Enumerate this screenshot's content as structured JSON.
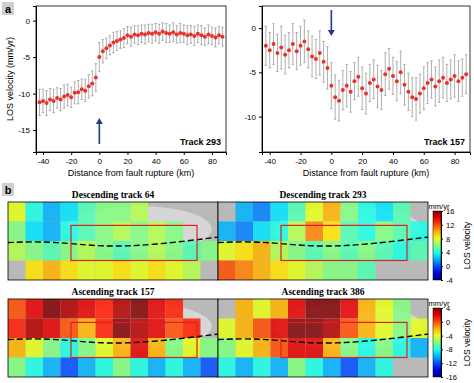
{
  "panel_labels": [
    "a",
    "b"
  ],
  "chart_data": [
    {
      "type": "scatter",
      "title": "Track 293",
      "color": "#e8322a",
      "marker": "circle",
      "x_label": "Distance from fault rupture (km)",
      "y_label": "LOS velocity (mm/yr)",
      "xlim": [
        -45,
        90
      ],
      "xticks": [
        -40,
        -20,
        0,
        20,
        40,
        60,
        80
      ],
      "ylim": [
        -18,
        2
      ],
      "yticks": [
        -15,
        -10,
        -5,
        0
      ],
      "fault_rupture": 0,
      "x": [
        -42.5,
        -40,
        -37.5,
        -35,
        -32.5,
        -30,
        -27.5,
        -25,
        -22.5,
        -20,
        -17.5,
        -15,
        -12.5,
        -10,
        -7.5,
        -5,
        -2.5,
        0,
        2.5,
        5,
        7.5,
        10,
        12.5,
        15,
        17.5,
        20,
        22.5,
        25,
        27.5,
        30,
        32.5,
        35,
        37.5,
        40,
        42.5,
        45,
        47.5,
        50,
        52.5,
        55,
        57.5,
        60,
        62.5,
        65,
        67.5,
        70,
        72.5,
        75,
        77.5,
        80,
        82.5,
        85,
        87.5
      ],
      "values": [
        -11.2,
        -11.0,
        -11.3,
        -10.8,
        -11.0,
        -10.6,
        -10.8,
        -10.4,
        -10.2,
        -10.5,
        -9.9,
        -9.8,
        -9.4,
        -9.6,
        -9.0,
        -8.6,
        -7.8,
        -5.0,
        -4.2,
        -3.8,
        -3.4,
        -3.0,
        -2.8,
        -2.6,
        -2.4,
        -2.0,
        -2.2,
        -1.9,
        -2.0,
        -1.8,
        -1.9,
        -1.7,
        -1.8,
        -1.6,
        -1.8,
        -1.5,
        -1.7,
        -1.8,
        -1.6,
        -1.9,
        -1.7,
        -1.8,
        -2.0,
        -1.9,
        -2.1,
        -1.8,
        -2.0,
        -2.2,
        -1.9,
        -2.1,
        -2.3,
        -2.0,
        -2.2
      ],
      "errors": [
        1.8,
        1.6,
        1.7,
        1.5,
        1.6,
        1.4,
        1.5,
        1.6,
        1.5,
        1.4,
        1.5,
        1.6,
        1.4,
        1.5,
        1.6,
        1.7,
        1.9,
        2.0,
        1.6,
        1.4,
        1.3,
        1.4,
        1.3,
        1.2,
        1.3,
        1.2,
        1.3,
        1.2,
        1.3,
        1.2,
        1.3,
        1.2,
        1.3,
        1.2,
        1.3,
        1.2,
        1.3,
        1.2,
        1.3,
        1.2,
        1.3,
        1.2,
        1.3,
        1.2,
        1.3,
        1.2,
        1.3,
        1.2,
        1.3,
        1.2,
        1.3,
        1.2,
        1.3
      ]
    },
    {
      "type": "scatter",
      "title": "Track 157",
      "color": "#e8322a",
      "marker": "circle",
      "x_label": "Distance from fault rupture (km)",
      "xlim": [
        -45,
        90
      ],
      "xticks": [
        -40,
        -20,
        0,
        20,
        40,
        60,
        80
      ],
      "ylim": [
        -14,
        2.5
      ],
      "yticks": [
        -10,
        -5,
        0
      ],
      "fault_rupture": 0,
      "x": [
        -42.5,
        -40,
        -37.5,
        -35,
        -32.5,
        -30,
        -27.5,
        -25,
        -22.5,
        -20,
        -17.5,
        -15,
        -12.5,
        -10,
        -7.5,
        -5,
        -2.5,
        0,
        2.5,
        5,
        7.5,
        10,
        12.5,
        15,
        17.5,
        20,
        22.5,
        25,
        27.5,
        30,
        32.5,
        35,
        37.5,
        40,
        42.5,
        45,
        47.5,
        50,
        52.5,
        55,
        57.5,
        60,
        62.5,
        65,
        67.5,
        70,
        72.5,
        75,
        77.5,
        80,
        82.5,
        85,
        87.5
      ],
      "values": [
        -2.0,
        -2.5,
        -1.8,
        -2.8,
        -2.2,
        -3.0,
        -2.5,
        -1.8,
        -2.6,
        -2.0,
        -1.5,
        -2.4,
        -3.2,
        -3.5,
        -2.8,
        -3.8,
        -4.5,
        -6.5,
        -7.8,
        -8.2,
        -7.0,
        -6.5,
        -7.2,
        -6.0,
        -5.5,
        -6.8,
        -7.4,
        -6.2,
        -5.8,
        -6.6,
        -7.0,
        -5.2,
        -4.6,
        -5.4,
        -6.0,
        -5.0,
        -6.4,
        -7.2,
        -7.8,
        -8.0,
        -7.4,
        -6.8,
        -6.2,
        -5.8,
        -6.6,
        -6.0,
        -5.6,
        -6.2,
        -5.8,
        -5.4,
        -6.0,
        -5.6,
        -5.2
      ],
      "errors": [
        2.2,
        2.0,
        2.3,
        2.1,
        2.4,
        2.2,
        2.0,
        2.3,
        2.1,
        2.2,
        2.4,
        2.1,
        2.3,
        2.2,
        2.5,
        2.3,
        2.4,
        2.6,
        2.5,
        2.3,
        2.2,
        2.4,
        2.3,
        2.1,
        2.2,
        2.4,
        2.3,
        2.1,
        2.2,
        2.4,
        2.2,
        2.4,
        2.3,
        2.1,
        2.2,
        2.4,
        2.3,
        2.1,
        2.2,
        2.4,
        2.2,
        2.4,
        2.3,
        2.1,
        2.2,
        2.4,
        2.3,
        2.1,
        2.2,
        2.4,
        2.3,
        2.1,
        2.2
      ]
    },
    {
      "type": "heatmap",
      "title": "Descending track 64",
      "tick_labels": false,
      "zlim": [
        -4,
        16
      ],
      "cells": [
        [
          8,
          4,
          2,
          3,
          5,
          6,
          6,
          7,
          null,
          null,
          null,
          null
        ],
        [
          6,
          3,
          2,
          4,
          5,
          6,
          7,
          6,
          7,
          6,
          null,
          null
        ],
        [
          7,
          6,
          5,
          6,
          7,
          6,
          5,
          6,
          7,
          6,
          5,
          6
        ],
        [
          null,
          9,
          10,
          9,
          8,
          8,
          9,
          8,
          9,
          8,
          7,
          null
        ]
      ]
    },
    {
      "type": "heatmap",
      "title": "Descending track 293",
      "tick_labels": false,
      "zlim": [
        -4,
        16
      ],
      "cells": [
        [
          null,
          2,
          1,
          3,
          5,
          8,
          10,
          6,
          4,
          3,
          5,
          null
        ],
        [
          2,
          1,
          3,
          4,
          7,
          11,
          9,
          5,
          4,
          6,
          5,
          4
        ],
        [
          8,
          9,
          10,
          7,
          6,
          5,
          6,
          5,
          6,
          5,
          4,
          5
        ],
        [
          12,
          11,
          10,
          9,
          8,
          7,
          6,
          6,
          5,
          null,
          null,
          null
        ]
      ],
      "colorbar": {
        "label": "mm/yr",
        "title": "LOS velocity",
        "ticks": [
          16,
          12,
          8,
          4,
          0,
          -4
        ]
      }
    },
    {
      "type": "heatmap",
      "title": "Ascending track 157",
      "tick_labels": false,
      "zlim": [
        -16,
        4
      ],
      "cells": [
        [
          0,
          2,
          4,
          3,
          2,
          1,
          3,
          4,
          2,
          1,
          null,
          null
        ],
        [
          1,
          3,
          2,
          0,
          -2,
          1,
          4,
          3,
          2,
          0,
          1,
          null
        ],
        [
          -2,
          -4,
          -6,
          -8,
          -6,
          -4,
          -2,
          2,
          -2,
          -6,
          -4,
          -6
        ],
        [
          -6,
          -8,
          -10,
          -12,
          -10,
          -8,
          -6,
          -8,
          -10,
          -8,
          -10,
          -12
        ]
      ]
    },
    {
      "type": "heatmap",
      "title": "Ascending track 386",
      "tick_labels": false,
      "zlim": [
        -16,
        4
      ],
      "cells": [
        [
          null,
          -2,
          -4,
          -2,
          2,
          4,
          4,
          2,
          -2,
          -4,
          -6,
          null
        ],
        [
          -4,
          -2,
          0,
          2,
          4,
          4,
          3,
          0,
          -2,
          -4,
          -6,
          -4
        ],
        [
          -6,
          -4,
          -2,
          0,
          2,
          2,
          -2,
          -6,
          -8,
          -6,
          -8,
          -10
        ],
        [
          -8,
          -10,
          -8,
          -10,
          -6,
          -8,
          -10,
          -12,
          -10,
          -8,
          null,
          null
        ]
      ],
      "colorbar": {
        "label": "mm/yr",
        "title": "LOS velocity",
        "ticks": [
          4,
          0,
          -4,
          -8,
          -12,
          -16
        ]
      }
    }
  ]
}
